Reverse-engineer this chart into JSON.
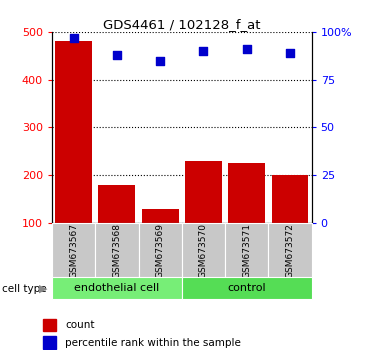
{
  "title": "GDS4461 / 102128_f_at",
  "samples": [
    "GSM673567",
    "GSM673568",
    "GSM673569",
    "GSM673570",
    "GSM673571",
    "GSM673572"
  ],
  "bar_values": [
    480,
    180,
    130,
    230,
    225,
    200
  ],
  "percentile_values": [
    97,
    88,
    85,
    90,
    91,
    89
  ],
  "bar_color": "#cc0000",
  "dot_color": "#0000cc",
  "ylim_left": [
    100,
    500
  ],
  "ylim_right": [
    0,
    100
  ],
  "yticks_left": [
    100,
    200,
    300,
    400,
    500
  ],
  "yticks_right": [
    0,
    25,
    50,
    75,
    100
  ],
  "ytick_labels_right": [
    "0",
    "25",
    "50",
    "75",
    "100%"
  ],
  "groups": [
    {
      "label": "endothelial cell",
      "indices": [
        0,
        1,
        2
      ],
      "color": "#77ee77"
    },
    {
      "label": "control",
      "indices": [
        3,
        4,
        5
      ],
      "color": "#55dd55"
    }
  ],
  "cell_type_label": "cell type",
  "legend_count_label": "count",
  "legend_percentile_label": "percentile rank within the sample",
  "sample_bg_color": "#c8c8c8",
  "group_border_color": "#000000"
}
